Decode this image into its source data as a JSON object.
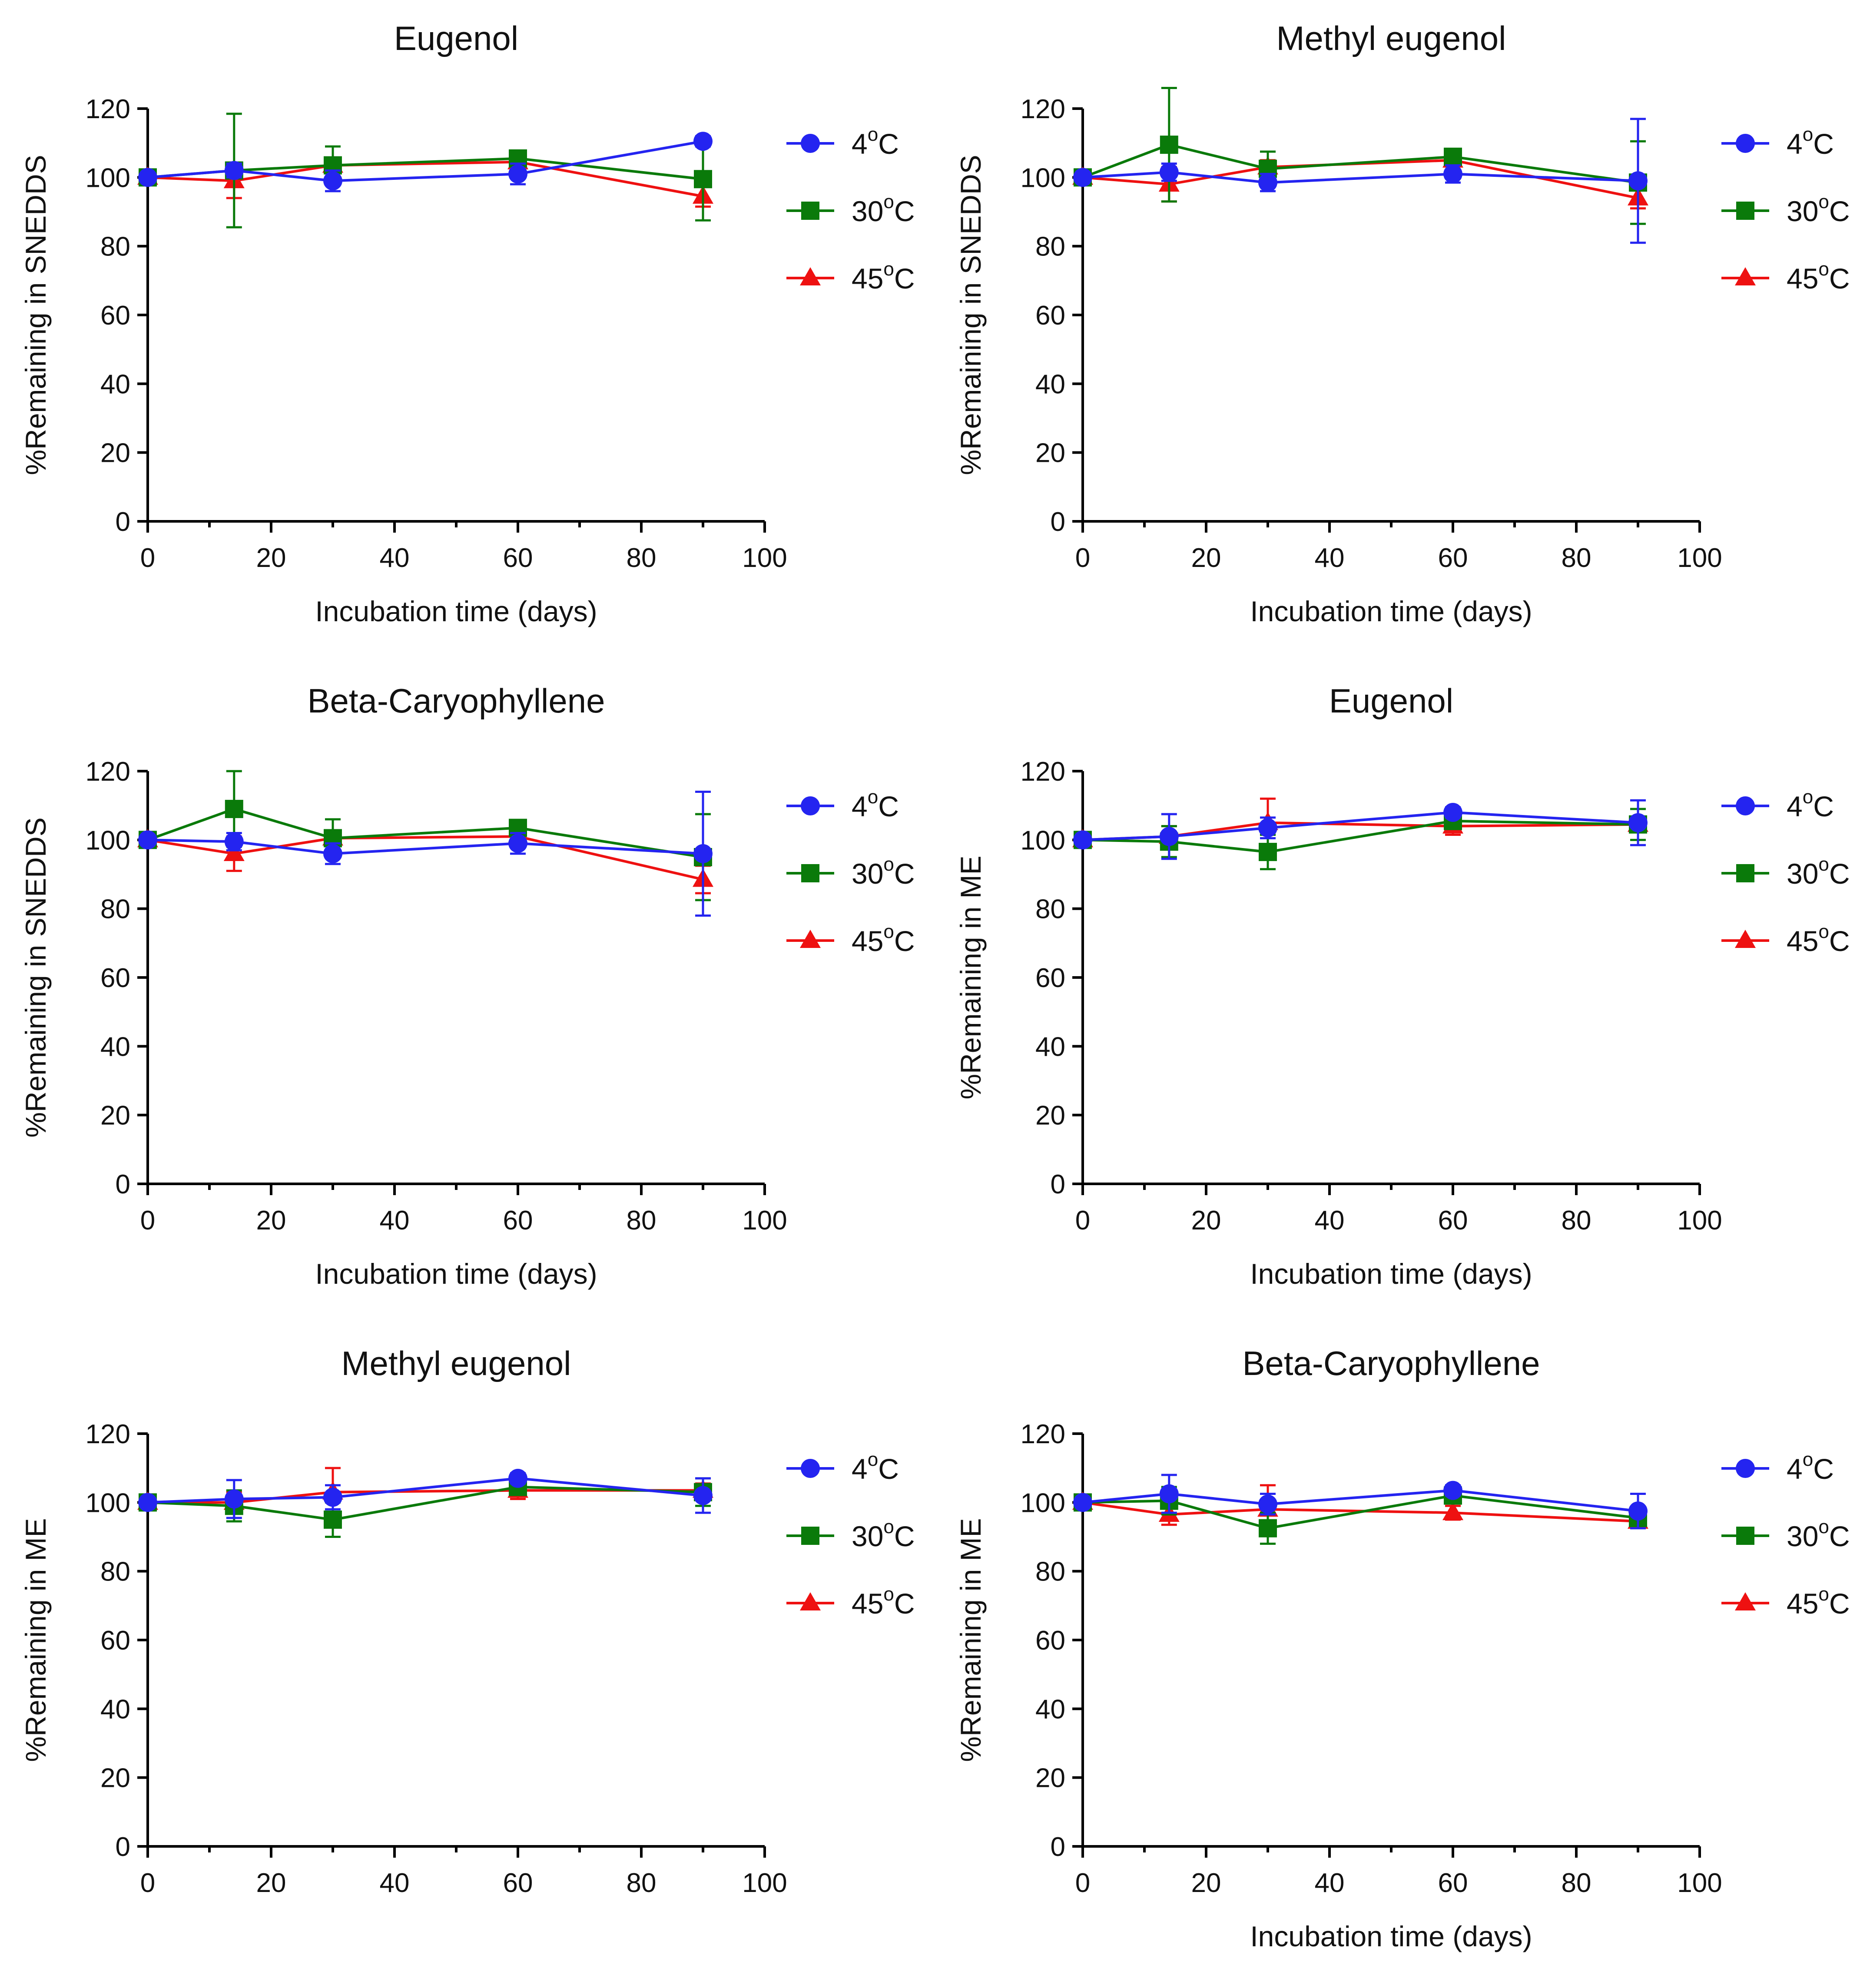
{
  "figure": {
    "colors": {
      "4C": "#2424f0",
      "30C": "#0a7a0a",
      "45C": "#ee1111"
    }
  },
  "chart_data": [
    {
      "type": "line",
      "title": "Eugenol",
      "xlabel": "Incubation time (days)",
      "ylabel": "%Remaining in SNEDDS",
      "xlim": [
        0,
        100
      ],
      "ylim": [
        0,
        120
      ],
      "xticks": [
        "0",
        "20",
        "40",
        "60",
        "80",
        "100"
      ],
      "yticks": [
        "0",
        "20",
        "40",
        "60",
        "80",
        "100",
        "120"
      ],
      "legend_position": "right",
      "x": [
        0,
        14,
        30,
        60,
        90
      ],
      "series": [
        {
          "name": "4",
          "suffix": "C",
          "marker": "circle",
          "color": "#2424f0",
          "values": [
            100,
            102,
            99,
            101,
            110.5
          ],
          "errors": [
            0,
            2,
            3,
            3,
            1.5
          ]
        },
        {
          "name": "30",
          "suffix": "C",
          "marker": "square",
          "color": "#0a7a0a",
          "values": [
            100,
            102,
            103.5,
            105.5,
            99.5
          ],
          "errors": [
            0,
            16.5,
            5.5,
            1.5,
            12
          ]
        },
        {
          "name": "45",
          "suffix": "C",
          "marker": "triangle",
          "color": "#ee1111",
          "values": [
            100,
            99,
            103.5,
            104.5,
            94.5
          ],
          "errors": [
            0,
            5,
            2,
            1.5,
            3
          ]
        }
      ]
    },
    {
      "type": "line",
      "title": "Methyl eugenol",
      "xlabel": "Incubation time (days)",
      "ylabel": "%Remaining in SNEDDS",
      "xlim": [
        0,
        100
      ],
      "ylim": [
        0,
        120
      ],
      "xticks": [
        "0",
        "20",
        "40",
        "60",
        "80",
        "100"
      ],
      "yticks": [
        "0",
        "20",
        "40",
        "60",
        "80",
        "100",
        "120"
      ],
      "legend_position": "right",
      "x": [
        0,
        14,
        30,
        60,
        90
      ],
      "series": [
        {
          "name": "4",
          "suffix": "C",
          "marker": "circle",
          "color": "#2424f0",
          "values": [
            100,
            101.5,
            98.5,
            101,
            99
          ],
          "errors": [
            0,
            2.5,
            2.5,
            2.5,
            18
          ]
        },
        {
          "name": "30",
          "suffix": "C",
          "marker": "square",
          "color": "#0a7a0a",
          "values": [
            100,
            109.5,
            102.5,
            106,
            98.5
          ],
          "errors": [
            0,
            16.5,
            5,
            1.5,
            12
          ]
        },
        {
          "name": "45",
          "suffix": "C",
          "marker": "triangle",
          "color": "#ee1111",
          "values": [
            100,
            98,
            103,
            105,
            94
          ],
          "errors": [
            0,
            5,
            2,
            1.5,
            3
          ]
        }
      ]
    },
    {
      "type": "line",
      "title": "Beta-Caryophyllene",
      "xlabel": "Incubation time (days)",
      "ylabel": "%Remaining in SNEDDS",
      "xlim": [
        0,
        100
      ],
      "ylim": [
        0,
        120
      ],
      "xticks": [
        "0",
        "20",
        "40",
        "60",
        "80",
        "100"
      ],
      "yticks": [
        "0",
        "20",
        "40",
        "60",
        "80",
        "100",
        "120"
      ],
      "legend_position": "right",
      "x": [
        0,
        14,
        30,
        60,
        90
      ],
      "series": [
        {
          "name": "4",
          "suffix": "C",
          "marker": "circle",
          "color": "#2424f0",
          "values": [
            100,
            99.5,
            96,
            99,
            96
          ],
          "errors": [
            0,
            2.5,
            3,
            3,
            18
          ]
        },
        {
          "name": "30",
          "suffix": "C",
          "marker": "square",
          "color": "#0a7a0a",
          "values": [
            100,
            109,
            100.5,
            103.5,
            95
          ],
          "errors": [
            0,
            11,
            5.5,
            1.5,
            12.5
          ]
        },
        {
          "name": "45",
          "suffix": "C",
          "marker": "triangle",
          "color": "#ee1111",
          "values": [
            100,
            96,
            100.5,
            101,
            88.5
          ],
          "errors": [
            0,
            5,
            2,
            1.5,
            4
          ]
        }
      ]
    },
    {
      "type": "line",
      "title": "Eugenol",
      "xlabel": "Incubation time (days)",
      "ylabel": "%Remaining in ME",
      "xlim": [
        0,
        100
      ],
      "ylim": [
        0,
        120
      ],
      "xticks": [
        "0",
        "20",
        "40",
        "60",
        "80",
        "100"
      ],
      "yticks": [
        "0",
        "20",
        "40",
        "60",
        "80",
        "100",
        "120"
      ],
      "legend_position": "right",
      "x": [
        0,
        14,
        30,
        60,
        90
      ],
      "series": [
        {
          "name": "4",
          "suffix": "C",
          "marker": "circle",
          "color": "#2424f0",
          "values": [
            100,
            101,
            103.5,
            108,
            105
          ],
          "errors": [
            0,
            6.5,
            3,
            1.5,
            6.5
          ]
        },
        {
          "name": "30",
          "suffix": "C",
          "marker": "square",
          "color": "#0a7a0a",
          "values": [
            100,
            99.5,
            96.5,
            105.5,
            104.5
          ],
          "errors": [
            0,
            4.5,
            5,
            1.5,
            4.5
          ]
        },
        {
          "name": "45",
          "suffix": "C",
          "marker": "triangle",
          "color": "#ee1111",
          "values": [
            100,
            101,
            105,
            104,
            104.5
          ],
          "errors": [
            0,
            3,
            7,
            2.5,
            2
          ]
        }
      ]
    },
    {
      "type": "line",
      "title": "Methyl eugenol",
      "xlabel": "",
      "ylabel": "%Remaining in ME",
      "xlim": [
        0,
        100
      ],
      "ylim": [
        0,
        120
      ],
      "xticks": [
        "0",
        "20",
        "40",
        "60",
        "80",
        "100"
      ],
      "yticks": [
        "0",
        "20",
        "40",
        "60",
        "80",
        "100",
        "120"
      ],
      "legend_position": "right",
      "x": [
        0,
        14,
        30,
        60,
        90
      ],
      "series": [
        {
          "name": "4",
          "suffix": "C",
          "marker": "circle",
          "color": "#2424f0",
          "values": [
            100,
            101,
            101.5,
            107,
            102
          ],
          "errors": [
            0,
            5.5,
            3.5,
            1.5,
            5
          ]
        },
        {
          "name": "30",
          "suffix": "C",
          "marker": "square",
          "color": "#0a7a0a",
          "values": [
            100,
            99,
            95,
            104.5,
            103
          ],
          "errors": [
            0,
            4.5,
            5,
            1.5,
            4
          ]
        },
        {
          "name": "45",
          "suffix": "C",
          "marker": "triangle",
          "color": "#ee1111",
          "values": [
            100,
            100,
            103,
            103.5,
            103.5
          ],
          "errors": [
            0,
            3,
            7,
            2.5,
            2
          ]
        }
      ]
    },
    {
      "type": "line",
      "title": "Beta-Caryophyllene",
      "xlabel": "Incubation time (days)",
      "ylabel": "%Remaining in ME",
      "xlim": [
        0,
        100
      ],
      "ylim": [
        0,
        120
      ],
      "xticks": [
        "0",
        "20",
        "40",
        "60",
        "80",
        "100"
      ],
      "yticks": [
        "0",
        "20",
        "40",
        "60",
        "80",
        "100",
        "120"
      ],
      "legend_position": "right",
      "x": [
        0,
        14,
        30,
        60,
        90
      ],
      "series": [
        {
          "name": "4",
          "suffix": "C",
          "marker": "circle",
          "color": "#2424f0",
          "values": [
            100,
            102.5,
            99.5,
            103.5,
            97.5
          ],
          "errors": [
            0,
            5.5,
            3,
            1.5,
            5
          ]
        },
        {
          "name": "30",
          "suffix": "C",
          "marker": "square",
          "color": "#0a7a0a",
          "values": [
            100,
            100.5,
            92.5,
            102,
            95.5
          ],
          "errors": [
            0,
            4,
            4.5,
            1.5,
            2
          ]
        },
        {
          "name": "45",
          "suffix": "C",
          "marker": "triangle",
          "color": "#ee1111",
          "values": [
            100,
            96.5,
            98,
            97,
            94.5
          ],
          "errors": [
            0,
            3,
            7,
            2,
            1.5
          ]
        }
      ]
    }
  ]
}
